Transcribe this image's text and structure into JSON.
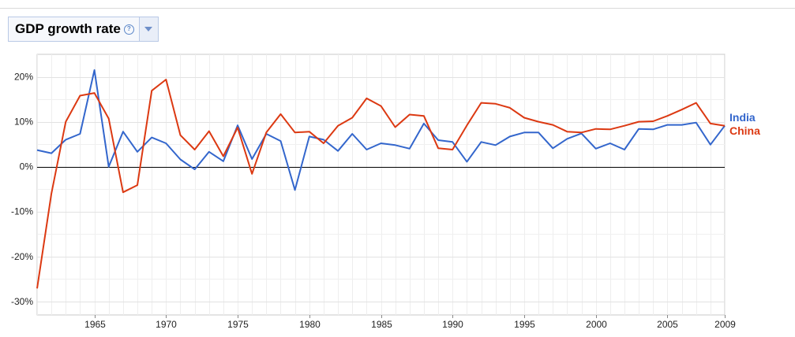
{
  "selector": {
    "title": "GDP growth rate",
    "help_icon": "help-icon",
    "dropdown_icon": "chevron-down-icon"
  },
  "colors": {
    "India": "#3366cc",
    "China": "#dc3912"
  },
  "chart_data": {
    "type": "line",
    "title": "GDP growth rate",
    "xlabel": "",
    "ylabel": "",
    "xlim": [
      1961,
      2009
    ],
    "ylim": [
      -33,
      25
    ],
    "grid": true,
    "legend": "right",
    "x_ticks": [
      {
        "value": 1965,
        "label": "1965"
      },
      {
        "value": 1970,
        "label": "1970"
      },
      {
        "value": 1975,
        "label": "1975"
      },
      {
        "value": 1980,
        "label": "1980"
      },
      {
        "value": 1985,
        "label": "1985"
      },
      {
        "value": 1990,
        "label": "1990"
      },
      {
        "value": 1995,
        "label": "1995"
      },
      {
        "value": 2000,
        "label": "2000"
      },
      {
        "value": 2005,
        "label": "2005"
      },
      {
        "value": 2009,
        "label": "2009"
      }
    ],
    "y_ticks": [
      {
        "value": 20,
        "label": "20%"
      },
      {
        "value": 10,
        "label": "10%"
      },
      {
        "value": 0,
        "label": "0%"
      },
      {
        "value": -10,
        "label": "-10%"
      },
      {
        "value": -20,
        "label": "-20%"
      },
      {
        "value": -30,
        "label": "-30%"
      }
    ],
    "x": [
      1961,
      1962,
      1963,
      1964,
      1965,
      1966,
      1967,
      1968,
      1969,
      1970,
      1971,
      1972,
      1973,
      1974,
      1975,
      1976,
      1977,
      1978,
      1979,
      1980,
      1981,
      1982,
      1983,
      1984,
      1985,
      1986,
      1987,
      1988,
      1989,
      1990,
      1991,
      1992,
      1993,
      1994,
      1995,
      1996,
      1997,
      1998,
      1999,
      2000,
      2001,
      2002,
      2003,
      2004,
      2005,
      2006,
      2007,
      2008,
      2009
    ],
    "series": [
      {
        "name": "India",
        "values": [
          3.7,
          3.0,
          6.0,
          7.3,
          21.5,
          0.0,
          7.8,
          3.3,
          6.5,
          5.2,
          1.6,
          -0.6,
          3.3,
          1.2,
          9.2,
          1.7,
          7.3,
          5.7,
          -5.2,
          6.7,
          6.0,
          3.5,
          7.3,
          3.8,
          5.2,
          4.8,
          4.0,
          9.6,
          5.9,
          5.5,
          1.1,
          5.5,
          4.8,
          6.7,
          7.6,
          7.6,
          4.1,
          6.2,
          7.4,
          4.0,
          5.2,
          3.8,
          8.4,
          8.3,
          9.3,
          9.3,
          9.8,
          4.9,
          9.1
        ]
      },
      {
        "name": "China",
        "values": [
          -27.1,
          -6.0,
          10.0,
          15.8,
          16.4,
          10.7,
          -5.7,
          -4.1,
          16.9,
          19.4,
          7.0,
          3.8,
          7.9,
          2.3,
          8.7,
          -1.6,
          7.6,
          11.7,
          7.6,
          7.8,
          5.2,
          9.1,
          10.9,
          15.2,
          13.5,
          8.8,
          11.6,
          11.3,
          4.1,
          3.8,
          9.2,
          14.2,
          14.0,
          13.1,
          10.9,
          10.0,
          9.3,
          7.8,
          7.6,
          8.4,
          8.3,
          9.1,
          10.0,
          10.1,
          11.3,
          12.7,
          14.2,
          9.6,
          9.1
        ]
      }
    ]
  }
}
